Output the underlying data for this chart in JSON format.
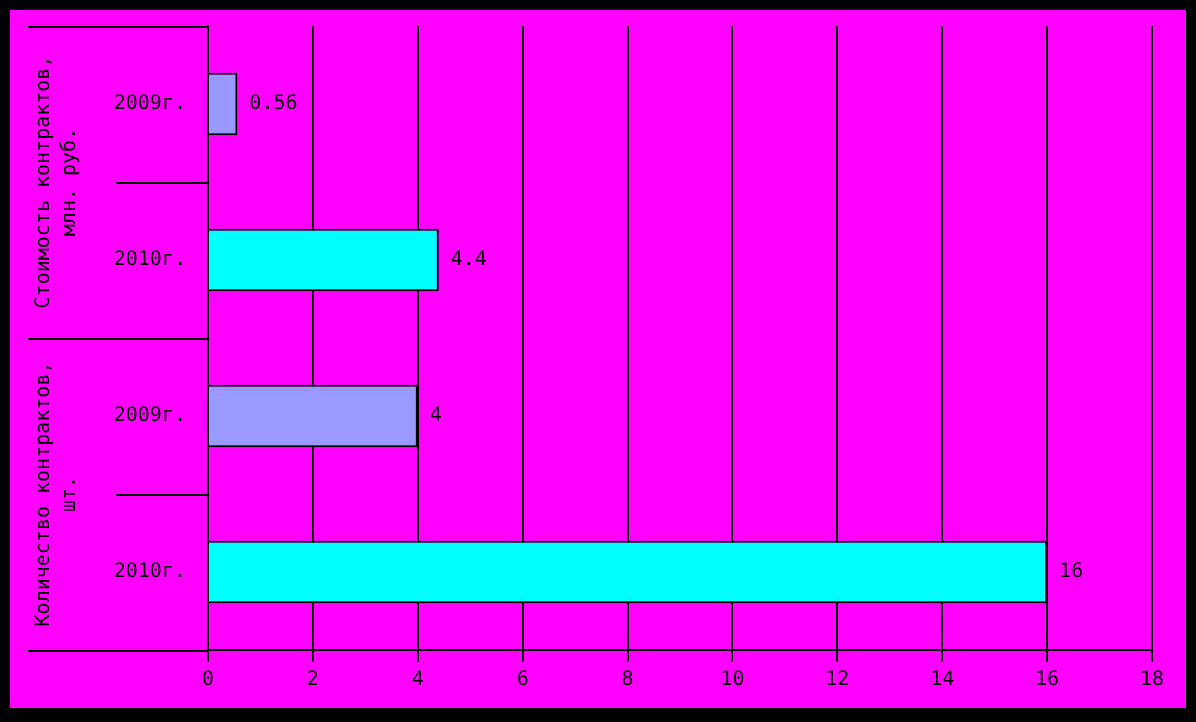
{
  "chart_data": {
    "type": "bar",
    "orientation": "horizontal",
    "categories": [
      "2009г.",
      "2010г.",
      "2009г.",
      "2010г."
    ],
    "values": [
      0.56,
      4.4,
      4,
      16
    ],
    "colors": [
      "#9999ff",
      "#00ffff",
      "#9999ff",
      "#00ffff"
    ],
    "xlim": [
      0,
      18
    ],
    "xticks": [
      0,
      2,
      4,
      6,
      8,
      10,
      12,
      14,
      16,
      18
    ],
    "grid": "x",
    "legend": false,
    "data_labels": true,
    "annotations": [
      "Стоимость контрактов, млн. руб.",
      "Количество контрактов, шт."
    ]
  }
}
